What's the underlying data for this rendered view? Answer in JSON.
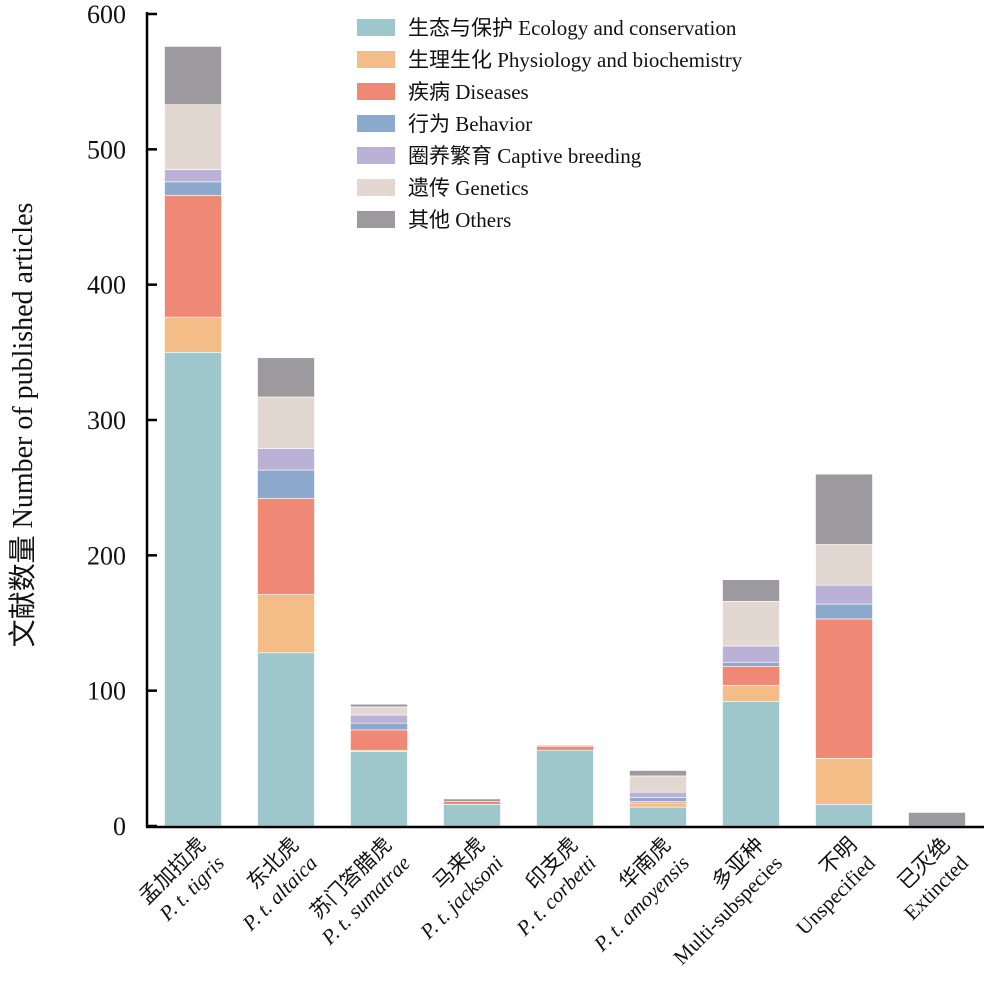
{
  "chart_data": {
    "type": "bar",
    "stacked": true,
    "title": "",
    "xlabel": "",
    "ylabel": "文献数量 Number of published articles",
    "ylim": [
      0,
      600
    ],
    "yticks": [
      0,
      100,
      200,
      300,
      400,
      500,
      600
    ],
    "grid": false,
    "legend_position": "top-right",
    "categories": [
      {
        "cn": "孟加拉虎",
        "en": "P. t. tigris",
        "italic": true
      },
      {
        "cn": "东北虎",
        "en": "P. t. altaica",
        "italic": true
      },
      {
        "cn": "苏门答腊虎",
        "en": "P. t. sumatrae",
        "italic": true
      },
      {
        "cn": "马来虎",
        "en": "P. t. jacksoni",
        "italic": true
      },
      {
        "cn": "印支虎",
        "en": "P. t. corbetti",
        "italic": true
      },
      {
        "cn": "华南虎",
        "en": "P. t. amoyensis",
        "italic": true
      },
      {
        "cn": "多亚种",
        "en": "Multi-subspecies",
        "italic": false
      },
      {
        "cn": "不明",
        "en": "Unspecified",
        "italic": false
      },
      {
        "cn": "已灭绝",
        "en": "Extincted",
        "italic": false
      }
    ],
    "series": [
      {
        "name": "生态与保护 Ecology and conservation",
        "color": "#9dc7cb",
        "values": [
          350,
          128,
          55,
          16,
          56,
          14,
          92,
          16,
          0
        ]
      },
      {
        "name": "生理生化 Physiology and biochemistry",
        "color": "#f4bd88",
        "values": [
          26,
          43,
          1,
          0,
          0,
          3,
          12,
          34,
          0
        ]
      },
      {
        "name": "疾病 Diseases",
        "color": "#f08876",
        "values": [
          90,
          71,
          15,
          2,
          3,
          1,
          14,
          103,
          0
        ]
      },
      {
        "name": "行为 Behavior",
        "color": "#8ca8cc",
        "values": [
          10,
          21,
          5,
          0,
          0,
          3,
          3,
          11,
          0
        ]
      },
      {
        "name": "圈养繁育 Captive breeding",
        "color": "#b9b2d6",
        "values": [
          9,
          16,
          6,
          0,
          0,
          4,
          12,
          14,
          0
        ]
      },
      {
        "name": "遗传 Genetics",
        "color": "#e3d7d2",
        "values": [
          48,
          38,
          6,
          0,
          1,
          12,
          33,
          30,
          0
        ]
      },
      {
        "name": "其他 Others",
        "color": "#9c9a9f",
        "values": [
          43,
          29,
          2,
          2,
          0,
          4,
          16,
          52,
          10
        ]
      }
    ]
  }
}
